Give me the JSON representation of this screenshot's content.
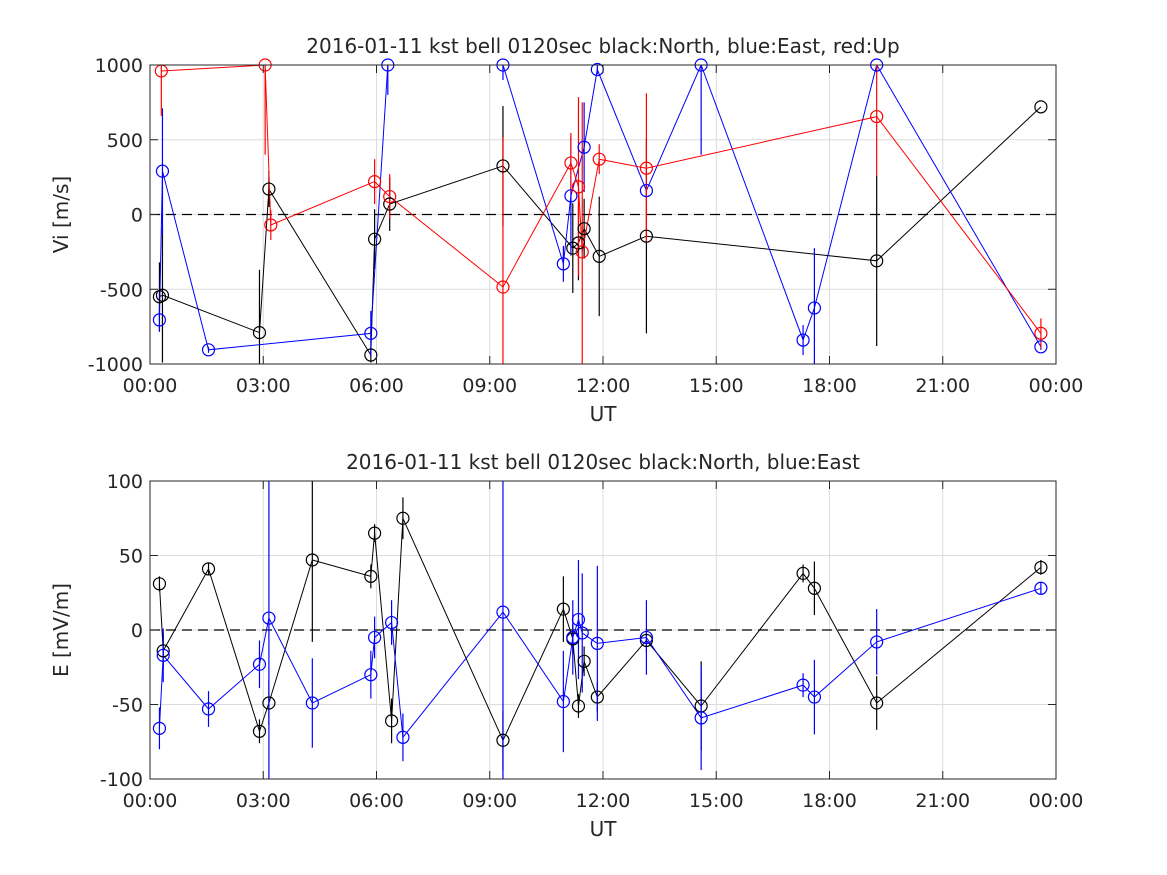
{
  "chart_data": [
    {
      "type": "scatter",
      "title": "2016-01-11 kst bell 0120sec black:North, blue:East, red:Up",
      "xlabel": "UT",
      "ylabel": "Vi [m/s]",
      "xlim": [
        0,
        24
      ],
      "ylim": [
        -1000,
        1000
      ],
      "x_ticks": [
        0,
        3,
        6,
        9,
        12,
        15,
        18,
        21,
        24
      ],
      "x_tick_labels": [
        "00:00",
        "03:00",
        "06:00",
        "09:00",
        "12:00",
        "15:00",
        "18:00",
        "21:00",
        "00:00"
      ],
      "y_ticks": [
        1000,
        500,
        0,
        -500,
        -1000
      ],
      "y_tick_labels": [
        "1000",
        "500",
        "0",
        "-500",
        "-1000"
      ],
      "grid": true,
      "zero_line": "dashed",
      "series": [
        {
          "color": "#000000",
          "x": [
            0.25,
            0.33,
            2.9,
            3.15,
            5.85,
            5.95,
            6.35,
            9.35,
            11.2,
            11.35,
            11.5,
            11.9,
            13.15,
            19.25,
            23.6
          ],
          "y": [
            -550,
            -540,
            -790,
            170,
            -940,
            -165,
            70,
            325,
            -225,
            -190,
            -95,
            -280,
            -145,
            -310,
            720
          ],
          "err": [
            230,
            450,
            420,
            120,
            50,
            200,
            180,
            400,
            300,
            250,
            200,
            400,
            650,
            570,
            0
          ]
        },
        {
          "color": "#0000ff",
          "x": [
            0.25,
            0.33,
            1.55,
            5.85,
            6.3,
            9.35,
            10.95,
            11.15,
            11.5,
            11.85,
            13.15,
            14.6,
            17.3,
            17.6,
            19.25,
            23.6
          ],
          "y": [
            -705,
            290,
            -905,
            -795,
            1000,
            1000,
            -330,
            125,
            450,
            970,
            160,
            1000,
            -840,
            -625,
            1000,
            -885
          ],
          "err": [
            80,
            420,
            20,
            150,
            200,
            100,
            120,
            400,
            300,
            30,
            50,
            600,
            100,
            400,
            50,
            20
          ]
        },
        {
          "color": "#ff0000",
          "x": [
            0.3,
            3.05,
            3.2,
            5.95,
            6.35,
            9.35,
            11.15,
            11.35,
            11.45,
            11.9,
            13.15,
            19.25,
            23.6
          ],
          "y": [
            960,
            1000,
            -70,
            220,
            120,
            -485,
            345,
            185,
            -250,
            370,
            310,
            655,
            -795
          ],
          "err": [
            300,
            600,
            100,
            150,
            150,
            1000,
            200,
            600,
            1000,
            100,
            500,
            400,
            100
          ]
        }
      ]
    },
    {
      "type": "scatter",
      "title": "2016-01-11 kst bell 0120sec black:North, blue:East",
      "xlabel": "UT",
      "ylabel": "E [mV/m]",
      "xlim": [
        0,
        24
      ],
      "ylim": [
        -100,
        100
      ],
      "x_ticks": [
        0,
        3,
        6,
        9,
        12,
        15,
        18,
        21,
        24
      ],
      "x_tick_labels": [
        "00:00",
        "03:00",
        "06:00",
        "09:00",
        "12:00",
        "15:00",
        "18:00",
        "21:00",
        "00:00"
      ],
      "y_ticks": [
        100,
        50,
        0,
        -50,
        -100
      ],
      "y_tick_labels": [
        "100",
        "50",
        "0",
        "-50",
        "-100"
      ],
      "grid": true,
      "zero_line": "dashed",
      "series": [
        {
          "color": "#000000",
          "x": [
            0.25,
            0.35,
            1.55,
            2.9,
            3.15,
            4.3,
            5.85,
            5.95,
            6.4,
            6.7,
            9.35,
            10.95,
            11.2,
            11.35,
            11.5,
            11.85,
            13.15,
            14.6,
            17.3,
            17.6,
            19.25,
            23.6
          ],
          "y": [
            31,
            -14,
            41,
            -68,
            -49,
            47,
            36,
            65,
            -61,
            75,
            -74,
            14,
            -6,
            -51,
            -21,
            -45,
            -7,
            -51,
            38,
            28,
            -49,
            42
          ],
          "err": [
            5,
            12,
            4,
            8,
            15,
            55,
            8,
            6,
            15,
            14,
            20,
            22,
            10,
            8,
            10,
            10,
            8,
            30,
            6,
            18,
            18,
            5
          ]
        },
        {
          "color": "#0000ff",
          "x": [
            0.25,
            0.35,
            1.55,
            2.9,
            3.15,
            4.3,
            5.85,
            5.95,
            6.4,
            6.7,
            9.35,
            10.95,
            11.2,
            11.35,
            11.45,
            11.85,
            13.15,
            14.6,
            17.3,
            17.6,
            19.25,
            23.6
          ],
          "y": [
            -66,
            -17,
            -53,
            -23,
            8,
            -49,
            -30,
            -5,
            5,
            -72,
            12,
            -48,
            -5,
            7,
            -2,
            -9,
            -5,
            -59,
            -37,
            -45,
            -8,
            28
          ],
          "err": [
            14,
            18,
            12,
            16,
            140,
            30,
            16,
            14,
            15,
            16,
            120,
            34,
            25,
            40,
            40,
            52,
            25,
            35,
            8,
            25,
            22,
            4
          ]
        }
      ]
    }
  ]
}
